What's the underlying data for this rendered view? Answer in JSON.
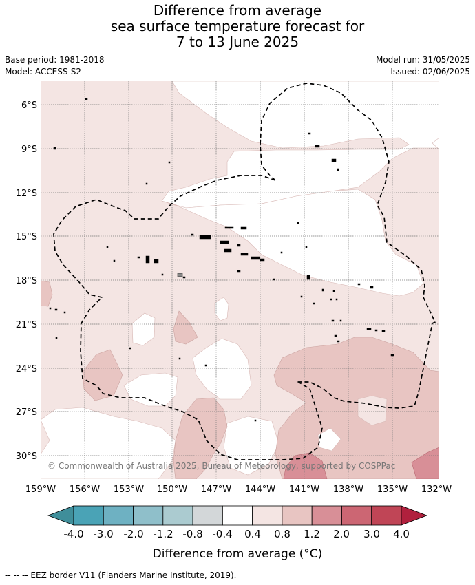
{
  "title": {
    "line1": "Difference from average",
    "line2": "sea surface temperature forecast for",
    "line3": "7 to 13 June 2025"
  },
  "base_period": "Base period: 1981-2018",
  "model": "Model: ACCESS-S2",
  "model_run": "Model run: 31/05/2025",
  "issued": "Issued: 02/06/2025",
  "map": {
    "lat_labels": [
      "6°S",
      "9°S",
      "12°S",
      "15°S",
      "18°S",
      "21°S",
      "24°S",
      "27°S",
      "30°S"
    ],
    "lon_labels": [
      "159°W",
      "156°W",
      "153°W",
      "150°W",
      "147°W",
      "144°W",
      "141°W",
      "138°W",
      "135°W",
      "132°W"
    ],
    "copyright": "© Commonwealth of Australia 2025, Bureau of Meteorology, supported by COSPPac"
  },
  "colorbar": {
    "tick_labels": [
      "-4.0",
      "-3.0",
      "-2.0",
      "-1.2",
      "-0.8",
      "-0.4",
      "0.4",
      "0.8",
      "1.2",
      "2.0",
      "3.0",
      "4.0"
    ],
    "label": "Difference from average (°C)",
    "colors": {
      "below": "#3f8e9a",
      "bins": [
        "#4aa3b6",
        "#6eb1c2",
        "#8fbfca",
        "#abcbd0",
        "#d3d7d9",
        "#ffffff",
        "#f4e5e3",
        "#e8c5c2",
        "#d88f97",
        "#cc6673",
        "#c04556"
      ],
      "above": "#b0203d"
    }
  },
  "footnote": "--  --  -- EEZ border V11 (Flanders Marine Institute, 2019)."
}
